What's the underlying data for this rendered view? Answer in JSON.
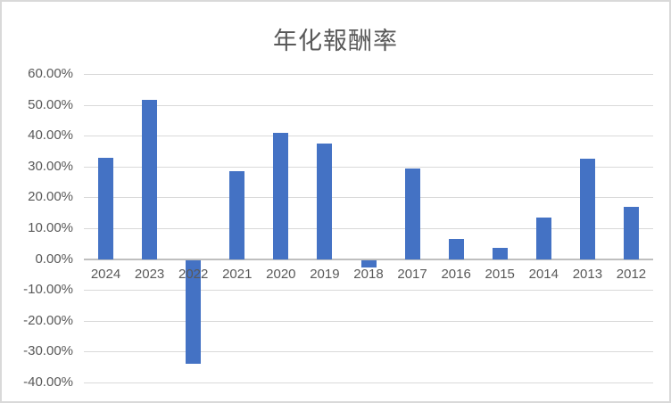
{
  "chart_data": {
    "type": "bar",
    "title": "年化報酬率",
    "categories": [
      "2024",
      "2023",
      "2022",
      "2021",
      "2020",
      "2019",
      "2018",
      "2017",
      "2016",
      "2015",
      "2014",
      "2013",
      "2012"
    ],
    "values": [
      32.9,
      51.5,
      -33.5,
      28.5,
      41.0,
      37.6,
      -2.5,
      29.5,
      6.4,
      3.6,
      13.6,
      32.6,
      17.0
    ],
    "value_unit": "percent",
    "xlabel": "",
    "ylabel": "",
    "ylim": [
      -40,
      60
    ],
    "y_tick_step": 10,
    "y_tick_labels": [
      "60.00%",
      "50.00%",
      "40.00%",
      "30.00%",
      "20.00%",
      "10.00%",
      "0.00%",
      "-10.00%",
      "-20.00%",
      "-30.00%",
      "-40.00%"
    ],
    "grid": true,
    "legend": false,
    "colors": {
      "bar": "#4472C4",
      "gridline": "#D9D9D9",
      "zero_axis_line": "#BFBFBF",
      "title_text": "#595959",
      "tick_text": "#595959",
      "chart_border": "#D9D9D9",
      "background": "#FFFFFF"
    }
  }
}
